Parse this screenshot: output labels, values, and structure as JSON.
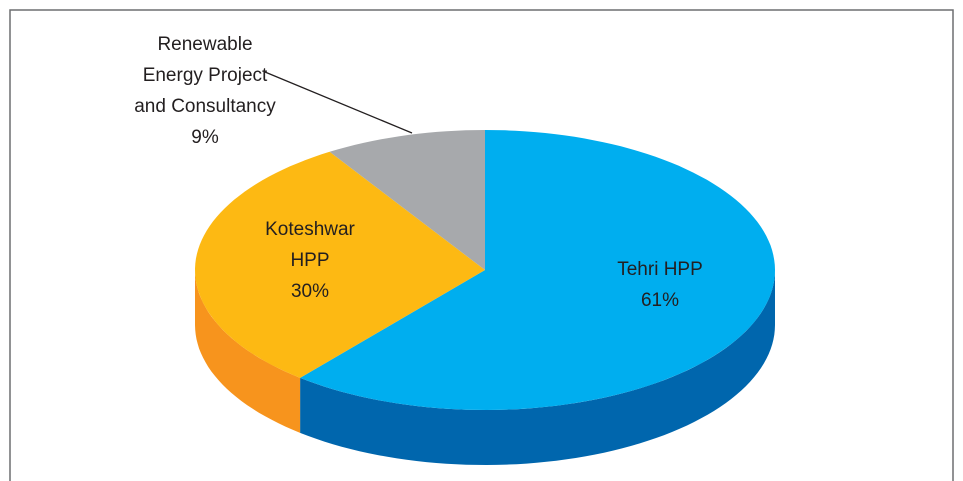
{
  "chart_data": {
    "type": "pie",
    "categories": [
      "Tehri HPP",
      "Koteshwar HPP",
      "Renewable Energy Project and Consultancy"
    ],
    "values": [
      61,
      30,
      9
    ],
    "value_labels": [
      "61%",
      "30%",
      "9%"
    ],
    "colors": [
      "#00aeef",
      "#fdb913",
      "#a7a9ac"
    ],
    "side_colors": [
      "#0066ad",
      "#f7941d",
      "#808285"
    ]
  }
}
